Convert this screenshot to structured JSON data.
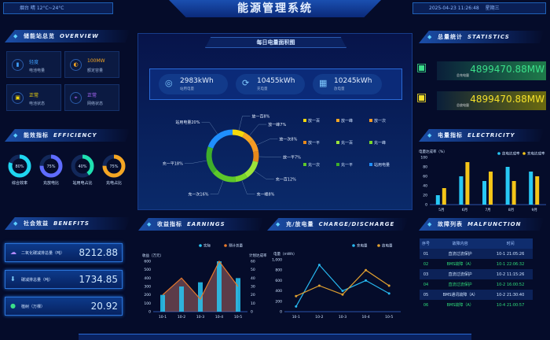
{
  "header": {
    "weather": "烟台 晴 12°C~24°C",
    "title": "能源管理系统",
    "datetime": "2025-04-23 11:26:48",
    "weekday": "星期三"
  },
  "overview": {
    "title_cn": "储能站总览",
    "title_en": "OVERVIEW",
    "cards": [
      {
        "value": "轻度",
        "label": "电池电量",
        "icon": "battery-icon",
        "color": "#3fa0ff"
      },
      {
        "value": "100MW",
        "label": "额定容量",
        "icon": "moon-icon",
        "color": "#f5a623"
      },
      {
        "value": "正常",
        "label": "电池状态",
        "icon": "chip-icon",
        "color": "#f5d90a"
      },
      {
        "value": "正常",
        "label": "网络状态",
        "icon": "location-icon",
        "color": "#b06bff"
      }
    ]
  },
  "efficiency": {
    "title_cn": "能效指标",
    "title_en": "EFFICIENCY",
    "rings": [
      {
        "value": 80,
        "text": "80%",
        "label": "综合效率",
        "color": "#1fd6f0"
      },
      {
        "value": 75,
        "text": "75%",
        "label": "充放电比",
        "color": "#5f6cff"
      },
      {
        "value": 40,
        "text": "40%",
        "label": "站用电占比",
        "color": "#1fe0b0"
      },
      {
        "value": 75,
        "text": "75%",
        "label": "充电占比",
        "color": "#f5a623"
      }
    ]
  },
  "benefits": {
    "title_cn": "社会效益",
    "title_en": "BENEFITS",
    "items": [
      {
        "label": "二氧化碳减排总量（吨）",
        "value": "8212.88",
        "icon": "cloud-icon"
      },
      {
        "label": "碳减排总量（吨）",
        "value": "1734.85",
        "icon": "leaf-icon"
      },
      {
        "label": "植树（万棵）",
        "value": "20.92",
        "icon": "tree-icon"
      }
    ]
  },
  "center": {
    "title": "每日电量面积图",
    "stats": [
      {
        "value": "2983kWh",
        "label": "站用电量",
        "icon": "bulb-icon"
      },
      {
        "value": "10455kWh",
        "label": "充电量",
        "icon": "charge-icon"
      },
      {
        "value": "10245kWh",
        "label": "放电量",
        "icon": "calendar-icon"
      }
    ]
  },
  "statistics": {
    "title_cn": "总量统计",
    "title_en": "STATISTICS",
    "items": [
      {
        "value": "4899470.88MW",
        "label": "总充电量",
        "color": "#3be08a"
      },
      {
        "value": "4899470.88MW",
        "label": "总放电量",
        "color": "#f5e12a"
      }
    ]
  },
  "electricity": {
    "title_cn": "电量指标",
    "title_en": "ELECTRICITY"
  },
  "earnings": {
    "title_cn": "收益指标",
    "title_en": "EARNINGS"
  },
  "charge": {
    "title_cn": "充/放电量",
    "title_en": "CHARGE/DISCHARGE"
  },
  "malfunction": {
    "title_cn": "故障列表",
    "title_en": "MALFUNCTION",
    "headers": [
      "序号",
      "故障内容",
      "时间"
    ],
    "rows": [
      {
        "no": "01",
        "content": "直流过流保护",
        "time": "10-1 21:05:26",
        "highlight": false
      },
      {
        "no": "02",
        "content": "BMS故障（A）",
        "time": "10-1 22:06:32",
        "highlight": true
      },
      {
        "no": "03",
        "content": "直流过流保护",
        "time": "10-2 11:15:26",
        "highlight": false
      },
      {
        "no": "04",
        "content": "直流过流保护",
        "time": "10-2 16:00:52",
        "highlight": true
      },
      {
        "no": "05",
        "content": "BMS通讯故障（A）",
        "time": "10-2 21:30:40",
        "highlight": false
      },
      {
        "no": "06",
        "content": "BMS故障（A）",
        "time": "10-4 21:00:57",
        "highlight": true
      }
    ]
  },
  "chart_data": [
    {
      "type": "pie",
      "variant": "donut",
      "slices": [
        {
          "label": "放一百",
          "value": 8,
          "text": "放一百8%",
          "color": "#f5d90a"
        },
        {
          "label": "放一峰",
          "value": 7,
          "text": "放一峰7%",
          "color": "#f5a623"
        },
        {
          "label": "放一次",
          "value": 8,
          "text": "放一次8%",
          "color": "#f59a23"
        },
        {
          "label": "放一平",
          "value": 7,
          "text": "放一平7%",
          "color": "#e8891a"
        },
        {
          "label": "充一百",
          "value": 12,
          "text": "充一百12%",
          "color": "#9be33a"
        },
        {
          "label": "充一峰",
          "value": 8,
          "text": "充一峰8%",
          "color": "#7ad62a"
        },
        {
          "label": "充一次",
          "value": 16,
          "text": "充一次16%",
          "color": "#5cc82a"
        },
        {
          "label": "充一平",
          "value": 18,
          "text": "充一平18%",
          "color": "#3fae2a"
        },
        {
          "label": "站用电量",
          "value": 20,
          "text": "站用电量20%",
          "color": "#1f8fff"
        }
      ],
      "legend": "right"
    },
    {
      "type": "bar",
      "ylabel": "电量达成率（%）",
      "categories": [
        "5月",
        "6月",
        "7月",
        "8月",
        "9月"
      ],
      "ylim": [
        0,
        100
      ],
      "yticks": [
        "0",
        "20",
        "40",
        "60",
        "80",
        "100"
      ],
      "series": [
        {
          "name": "放电达成率",
          "values": [
            20,
            60,
            50,
            80,
            70
          ],
          "color": "#27c8f5"
        },
        {
          "name": "充电达成率",
          "values": [
            35,
            90,
            70,
            50,
            60
          ],
          "color": "#f5c518"
        }
      ],
      "legend": "top-right"
    },
    {
      "type": "bar",
      "ylabel": "收益（万元）",
      "y2label": "计划达成率",
      "categories": [
        "10-1",
        "10-2",
        "10-3",
        "10-4",
        "10-5"
      ],
      "ylim": [
        0,
        600
      ],
      "y2lim": [
        0,
        60
      ],
      "yticks": [
        "0",
        "100",
        "200",
        "300",
        "400",
        "500",
        "600"
      ],
      "y2ticks": [
        "0",
        "10",
        "20",
        "30",
        "40",
        "50",
        "60"
      ],
      "series": [
        {
          "name": "实际",
          "type": "bar",
          "values": [
            200,
            300,
            350,
            600,
            400
          ],
          "color": "#27c8f5"
        },
        {
          "name": "预计总量",
          "type": "area",
          "axis": "right",
          "values": [
            20,
            40,
            15,
            60,
            30
          ],
          "color": "#e8792a"
        }
      ],
      "legend": "top-right"
    },
    {
      "type": "line",
      "ylabel": "电量（mWh）",
      "categories": [
        "10-1",
        "10-2",
        "10-3",
        "10-4",
        "10-5"
      ],
      "ylim": [
        0,
        1000
      ],
      "yticks": [
        "0",
        "200",
        "400",
        "600",
        "800",
        "1,000"
      ],
      "series": [
        {
          "name": "充电量",
          "values": [
            100,
            900,
            400,
            600,
            350
          ],
          "color": "#27b8f0"
        },
        {
          "name": "放电量",
          "values": [
            300,
            500,
            330,
            800,
            500
          ],
          "color": "#e0a030"
        }
      ],
      "legend": "top-right"
    }
  ]
}
